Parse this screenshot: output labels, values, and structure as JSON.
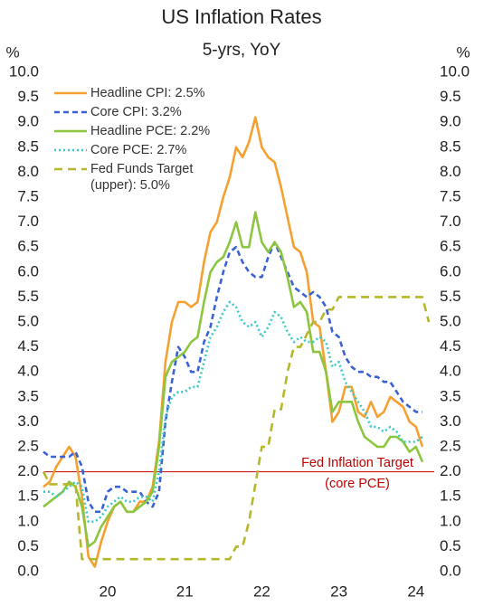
{
  "chart_data": {
    "type": "line",
    "title": "US Inflation Rates",
    "subtitle": "5-yrs, YoY",
    "y_label": "%",
    "y2_label": "%",
    "categories": [
      null,
      null,
      null,
      null,
      null,
      null,
      null,
      null,
      null,
      null,
      "20",
      null,
      null,
      null,
      null,
      null,
      null,
      null,
      null,
      null,
      null,
      null,
      "21",
      null,
      null,
      null,
      null,
      null,
      null,
      null,
      null,
      null,
      null,
      null,
      "22",
      null,
      null,
      null,
      null,
      null,
      null,
      null,
      null,
      null,
      null,
      null,
      "23",
      null,
      null,
      null,
      null,
      null,
      null,
      null,
      null,
      null,
      null,
      null,
      "24",
      null,
      null
    ],
    "ylim": [
      0,
      10
    ],
    "y2lim": [
      0,
      10
    ],
    "yticks": [
      {
        "value": 0,
        "label": "0.0"
      },
      {
        "value": 0.5,
        "label": "0.5"
      },
      {
        "value": 1,
        "label": "1.0"
      },
      {
        "value": 1.5,
        "label": "1.5"
      },
      {
        "value": 2,
        "label": "2.0"
      },
      {
        "value": 2.5,
        "label": "2.5"
      },
      {
        "value": 3,
        "label": "3.0"
      },
      {
        "value": 3.5,
        "label": "3.5"
      },
      {
        "value": 4,
        "label": "4.0"
      },
      {
        "value": 4.5,
        "label": "4.5"
      },
      {
        "value": 5,
        "label": "5.0"
      },
      {
        "value": 5.5,
        "label": "5.5"
      },
      {
        "value": 6,
        "label": "6.0"
      },
      {
        "value": 6.5,
        "label": "6.5"
      },
      {
        "value": 7,
        "label": "7.0"
      },
      {
        "value": 7.5,
        "label": "7.5"
      },
      {
        "value": 8,
        "label": "8.0"
      },
      {
        "value": 8.5,
        "label": "8.5"
      },
      {
        "value": 9,
        "label": "9.0"
      },
      {
        "value": 9.5,
        "label": "9.5"
      },
      {
        "value": 10,
        "label": "10.0"
      }
    ],
    "y2ticks": [
      {
        "value": 0,
        "label": "0.0"
      },
      {
        "value": 0.5,
        "label": "0.5"
      },
      {
        "value": 1,
        "label": "1.0"
      },
      {
        "value": 1.5,
        "label": "1.5"
      },
      {
        "value": 2,
        "label": "2.0"
      },
      {
        "value": 2.5,
        "label": "2.5"
      },
      {
        "value": 3,
        "label": "3.0"
      },
      {
        "value": 3.5,
        "label": "3.5"
      },
      {
        "value": 4,
        "label": "4.0"
      },
      {
        "value": 4.5,
        "label": "4.5"
      },
      {
        "value": 5,
        "label": "5.0"
      },
      {
        "value": 5.5,
        "label": "5.5"
      },
      {
        "value": 6,
        "label": "6.0"
      },
      {
        "value": 6.5,
        "label": "6.5"
      },
      {
        "value": 7,
        "label": "7.0"
      },
      {
        "value": 7.5,
        "label": "7.5"
      },
      {
        "value": 8,
        "label": "8.0"
      },
      {
        "value": 8.5,
        "label": "8.5"
      },
      {
        "value": 9,
        "label": "9.0"
      },
      {
        "value": 9.5,
        "label": "9.5"
      },
      {
        "value": 10,
        "label": "10.0"
      }
    ],
    "series": [
      {
        "name": "Headline CPI: 2.5%",
        "color": "#f5a030",
        "dash": "solid",
        "values": [
          1.7,
          1.8,
          2.1,
          2.3,
          2.5,
          2.3,
          1.5,
          0.3,
          0.1,
          0.6,
          1.0,
          1.3,
          1.4,
          1.2,
          1.2,
          1.4,
          1.4,
          1.7,
          2.6,
          4.2,
          5.0,
          5.4,
          5.4,
          5.3,
          5.4,
          6.2,
          6.8,
          7.0,
          7.5,
          7.9,
          8.5,
          8.3,
          8.6,
          9.1,
          8.5,
          8.3,
          8.2,
          7.7,
          7.1,
          6.5,
          6.4,
          6.0,
          5.0,
          4.9,
          4.0,
          3.0,
          3.2,
          3.7,
          3.7,
          3.2,
          3.1,
          3.4,
          3.1,
          3.2,
          3.5,
          3.4,
          3.3,
          3.0,
          2.9,
          2.5,
          null
        ]
      },
      {
        "name": "Core CPI: 3.2%",
        "color": "#3b62d4",
        "dash": "dashed",
        "values": [
          2.4,
          2.3,
          2.3,
          2.3,
          2.3,
          2.4,
          2.1,
          1.4,
          1.2,
          1.2,
          1.6,
          1.7,
          1.7,
          1.6,
          1.6,
          1.6,
          1.4,
          1.3,
          1.6,
          3.0,
          3.8,
          4.5,
          4.3,
          4.0,
          4.0,
          4.6,
          4.9,
          5.5,
          6.0,
          6.4,
          6.5,
          6.2,
          6.0,
          5.9,
          5.9,
          6.3,
          6.6,
          6.3,
          6.0,
          5.7,
          5.6,
          5.5,
          5.6,
          5.5,
          5.3,
          4.8,
          4.7,
          4.3,
          4.1,
          4.0,
          4.0,
          3.9,
          3.9,
          3.8,
          3.8,
          3.6,
          3.4,
          3.3,
          3.2,
          3.2,
          null
        ]
      },
      {
        "name": "Headline PCE: 2.2%",
        "color": "#8cc63f",
        "dash": "solid",
        "values": [
          1.3,
          1.4,
          1.5,
          1.6,
          1.8,
          1.7,
          1.3,
          0.5,
          0.6,
          0.9,
          1.1,
          1.3,
          1.4,
          1.2,
          1.2,
          1.3,
          1.4,
          1.6,
          2.5,
          3.9,
          4.2,
          4.3,
          4.4,
          4.6,
          4.7,
          5.4,
          6.0,
          6.2,
          6.3,
          6.6,
          7.0,
          6.5,
          6.5,
          7.2,
          6.6,
          6.4,
          6.6,
          6.4,
          5.9,
          5.3,
          5.4,
          5.2,
          4.4,
          4.4,
          4.0,
          3.2,
          3.4,
          3.4,
          3.4,
          3.0,
          2.7,
          2.6,
          2.5,
          2.5,
          2.7,
          2.7,
          2.6,
          2.4,
          2.5,
          2.2,
          null
        ]
      },
      {
        "name": "Core PCE: 2.7%",
        "color": "#3cc8c8",
        "dash": "dotted",
        "values": [
          1.6,
          1.6,
          1.5,
          1.6,
          1.7,
          1.8,
          1.7,
          1.0,
          1.0,
          1.1,
          1.3,
          1.4,
          1.5,
          1.4,
          1.4,
          1.5,
          1.5,
          1.4,
          2.0,
          3.1,
          3.5,
          3.6,
          3.6,
          3.7,
          3.7,
          4.2,
          4.7,
          4.9,
          5.2,
          5.4,
          5.3,
          5.0,
          4.9,
          5.0,
          4.7,
          4.9,
          5.2,
          5.1,
          4.8,
          4.6,
          4.7,
          4.6,
          4.6,
          4.7,
          4.6,
          4.1,
          4.2,
          3.8,
          3.6,
          3.4,
          3.2,
          2.9,
          2.9,
          2.8,
          2.9,
          2.8,
          2.6,
          2.6,
          2.6,
          2.7,
          null
        ]
      },
      {
        "name": "Fed Funds Target (upper): 5.0%",
        "color": "#b5b82a",
        "dash": "longdash",
        "values": [
          2.0,
          1.75,
          1.75,
          1.75,
          1.75,
          1.75,
          0.25,
          0.25,
          0.25,
          0.25,
          0.25,
          0.25,
          0.25,
          0.25,
          0.25,
          0.25,
          0.25,
          0.25,
          0.25,
          0.25,
          0.25,
          0.25,
          0.25,
          0.25,
          0.25,
          0.25,
          0.25,
          0.25,
          0.25,
          0.25,
          0.5,
          0.5,
          1.0,
          1.75,
          2.5,
          2.5,
          3.25,
          3.25,
          4.0,
          4.5,
          4.5,
          4.75,
          5.0,
          5.0,
          5.25,
          5.25,
          5.5,
          5.5,
          5.5,
          5.5,
          5.5,
          5.5,
          5.5,
          5.5,
          5.5,
          5.5,
          5.5,
          5.5,
          5.5,
          5.5,
          5.0
        ]
      }
    ],
    "reference_line": {
      "value": 2.0,
      "color": "#c00000",
      "label": [
        "Fed Inflation Target",
        "(core PCE)"
      ]
    }
  }
}
